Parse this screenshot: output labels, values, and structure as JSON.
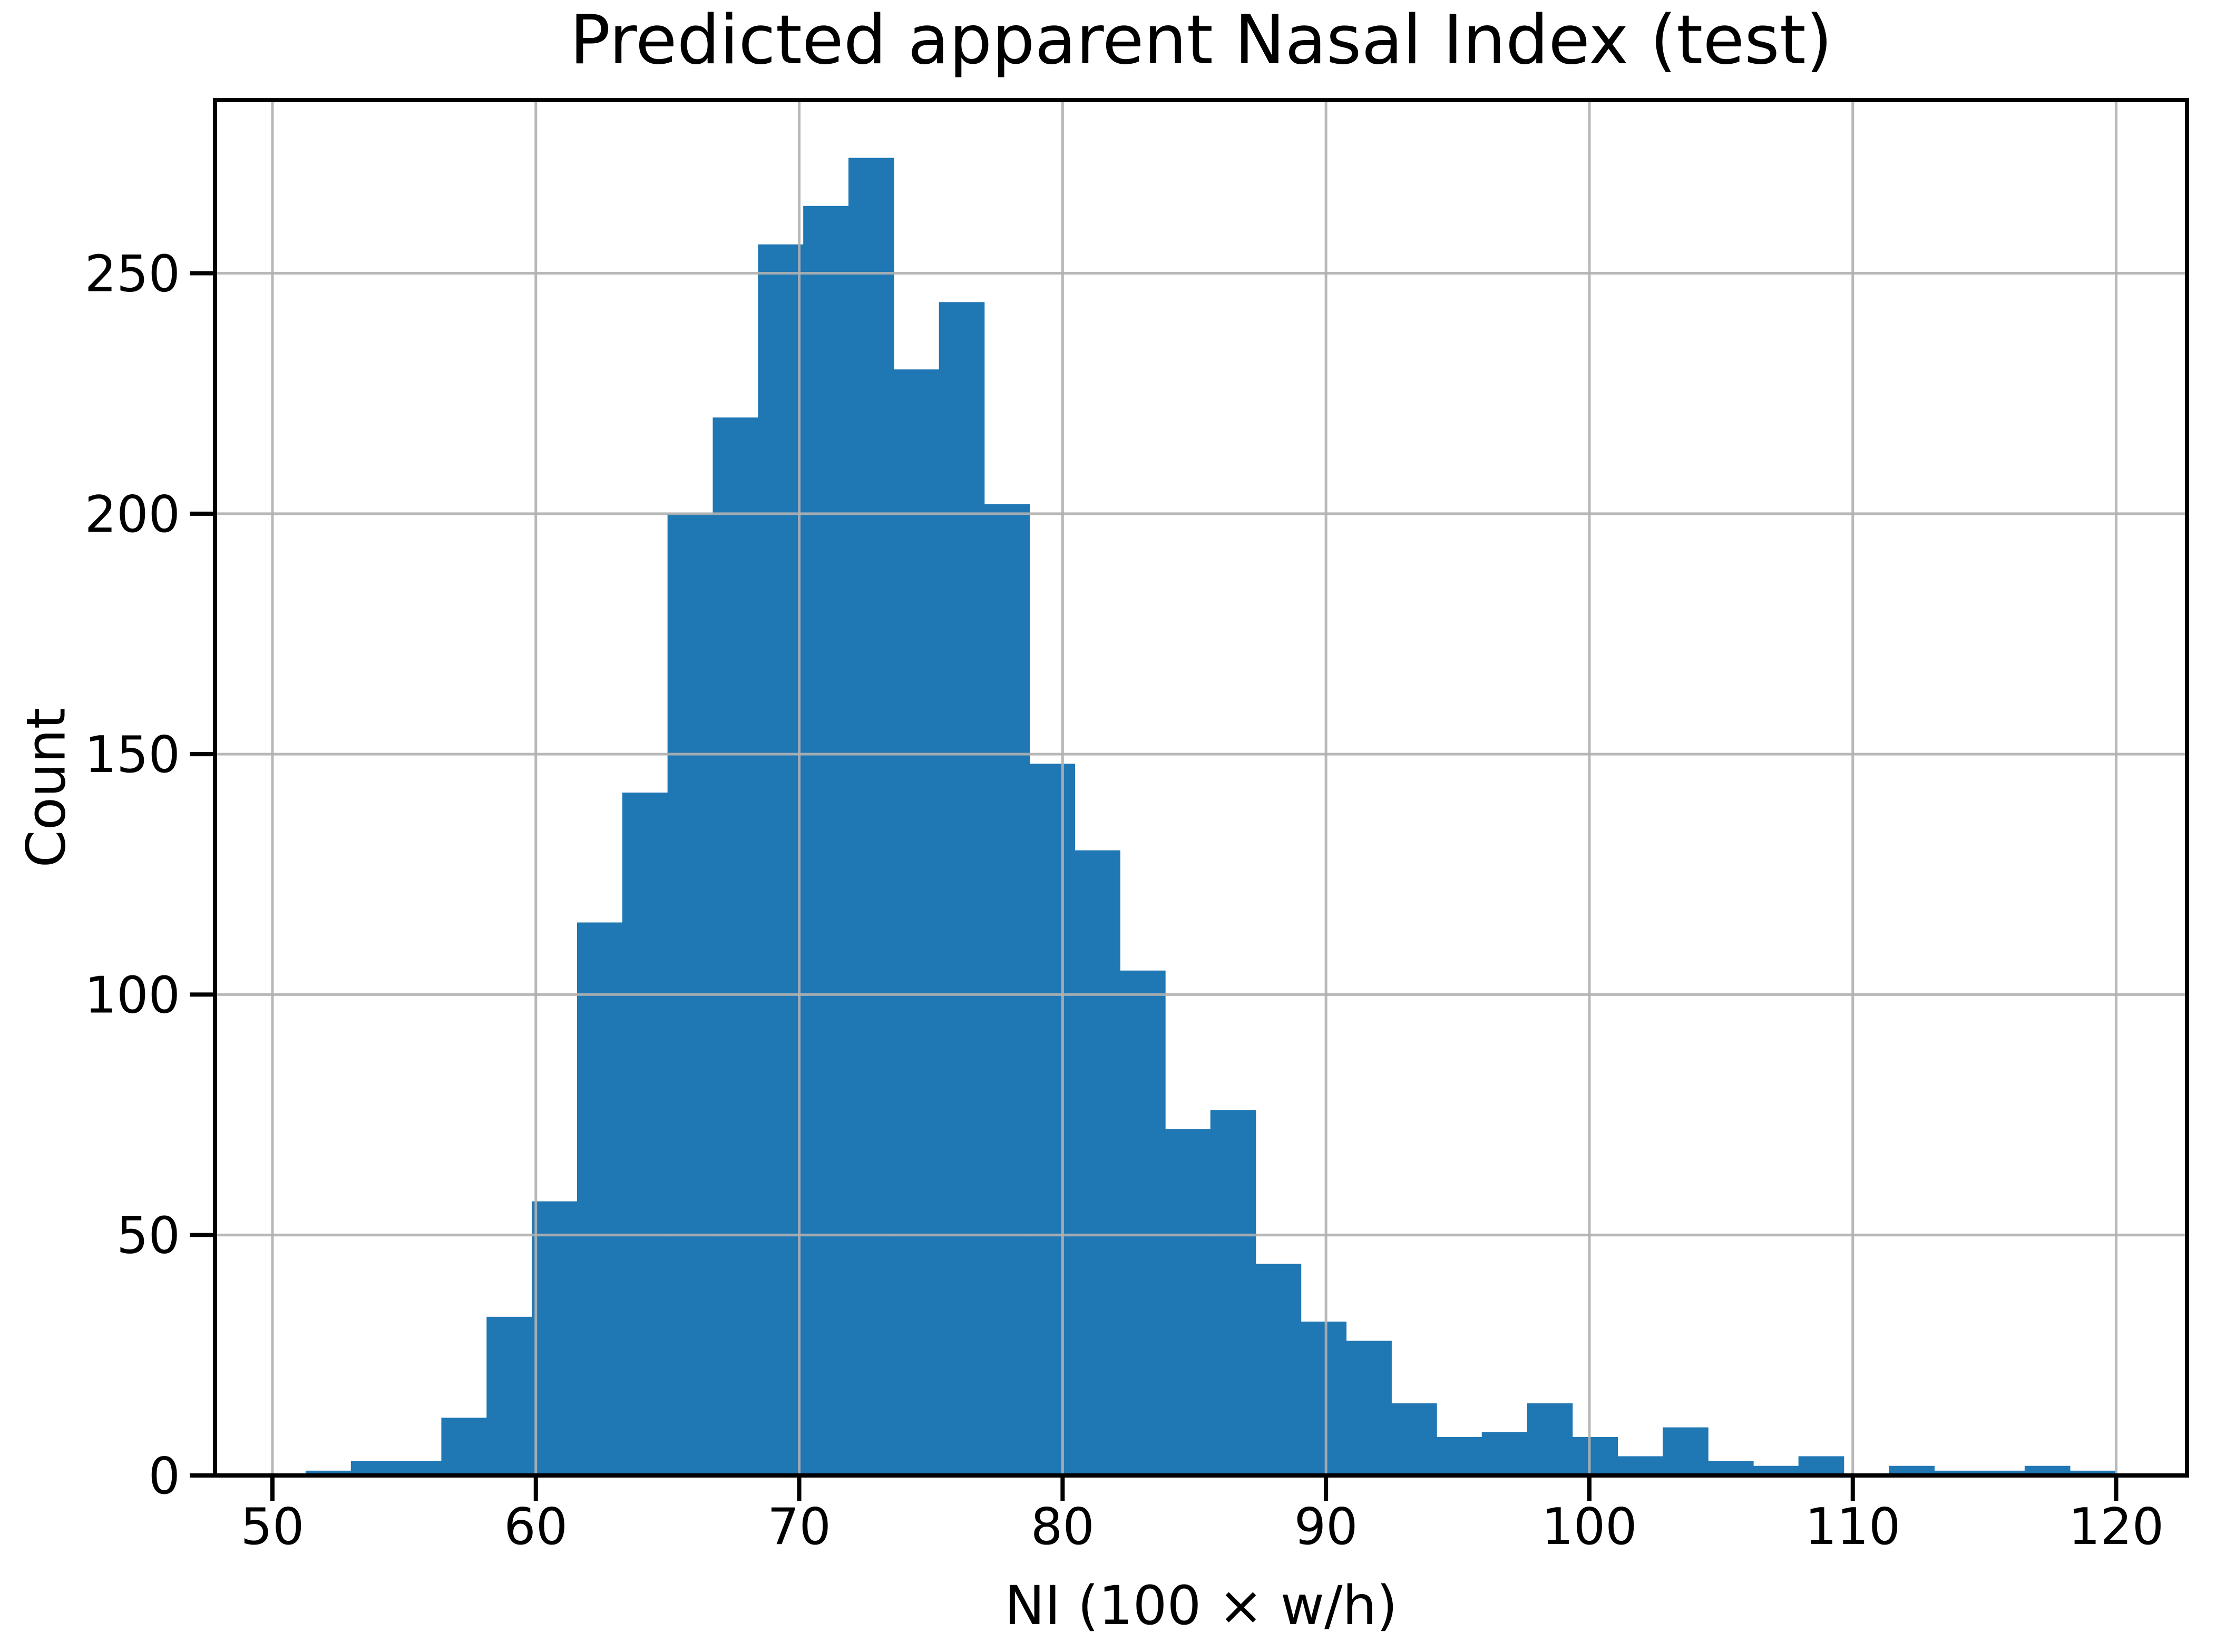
{
  "chart_data": {
    "type": "bar",
    "subtype": "histogram",
    "title": "Predicted apparent Nasal Index (test)",
    "xlabel": "NI (100 × w/h)",
    "ylabel": "Count",
    "bin_start": 51.26,
    "bin_width": 1.7175,
    "counts": [
      1,
      3,
      3,
      12,
      33,
      57,
      115,
      142,
      200,
      220,
      256,
      264,
      274,
      230,
      244,
      202,
      148,
      130,
      105,
      72,
      76,
      44,
      32,
      28,
      15,
      8,
      9,
      15,
      8,
      4,
      10,
      3,
      2,
      4,
      0,
      2,
      1,
      1,
      2,
      1
    ],
    "x_ticks": [
      50,
      60,
      70,
      80,
      90,
      100,
      110,
      120
    ],
    "x_tick_labels": [
      "50",
      "60",
      "70",
      "80",
      "90",
      "100",
      "110",
      "120"
    ],
    "y_ticks": [
      0,
      50,
      100,
      150,
      200,
      250
    ],
    "y_tick_labels": [
      "0",
      "50",
      "100",
      "150",
      "200",
      "250"
    ],
    "xlim": [
      47.82,
      122.69
    ],
    "ylim": [
      0,
      286
    ],
    "grid": true,
    "grid_on_top_of_bars": true,
    "legend_position": "none",
    "bar_color": "#1f77b4",
    "grid_color": "#b0b0b0",
    "axis_color": "#000000"
  }
}
